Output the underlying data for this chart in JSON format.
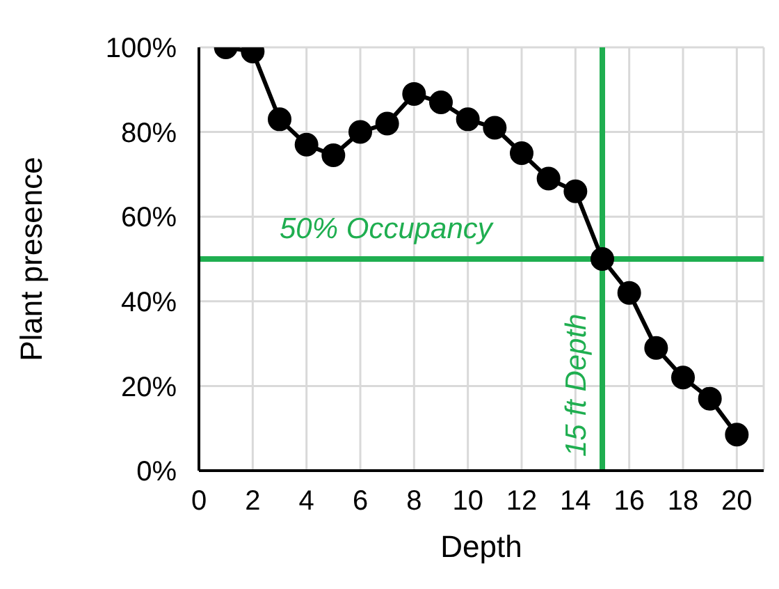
{
  "chart_data": {
    "type": "line",
    "xlabel": "Depth",
    "ylabel": "Plant presence",
    "x": [
      1,
      2,
      3,
      4,
      5,
      6,
      7,
      8,
      9,
      10,
      11,
      12,
      13,
      14,
      15,
      16,
      17,
      18,
      19,
      20
    ],
    "series": [
      {
        "color": "#000000",
        "values": [
          100,
          99,
          83,
          77,
          74.5,
          80,
          82,
          89,
          87,
          83,
          81,
          75,
          69,
          66,
          50,
          42,
          29,
          22,
          17,
          8.5
        ]
      }
    ],
    "xlim": [
      0,
      21
    ],
    "xticks": [
      0,
      2,
      4,
      6,
      8,
      10,
      12,
      14,
      16,
      18,
      20
    ],
    "ylim": [
      0,
      100
    ],
    "yticks": [
      {
        "value": 0,
        "label": "0%"
      },
      {
        "value": 20,
        "label": "20%"
      },
      {
        "value": 40,
        "label": "40%"
      },
      {
        "value": 60,
        "label": "60%"
      },
      {
        "value": 80,
        "label": "80%"
      },
      {
        "value": 100,
        "label": "100%"
      }
    ],
    "grid": true,
    "marker": "circle",
    "line_style": "solid",
    "ref_lines": [
      {
        "axis": "y",
        "value": 50,
        "label": "50% Occupancy",
        "color": "#1fae50"
      },
      {
        "axis": "x",
        "value": 15,
        "label": "15 ft Depth",
        "color": "#1fae50"
      }
    ]
  }
}
